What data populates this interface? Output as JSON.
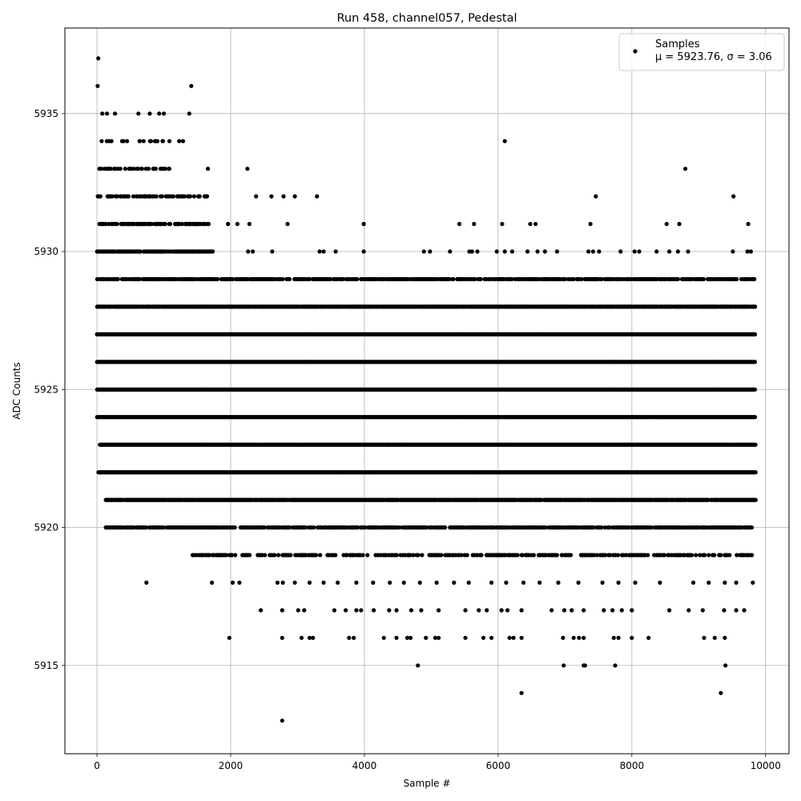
{
  "chart_data": {
    "type": "scatter",
    "title": "Run 458, channel057, Pedestal",
    "xlabel": "Sample #",
    "ylabel": "ADC Counts",
    "xlim": [
      -480,
      10350
    ],
    "ylim": [
      5911.8,
      5938.1
    ],
    "xticks": [
      0,
      2000,
      4000,
      6000,
      8000,
      10000
    ],
    "yticks": [
      5915,
      5920,
      5925,
      5930,
      5935
    ],
    "grid": true,
    "legend_position": "top-right",
    "marker_color": "#000000",
    "series": [
      {
        "name": "Samples",
        "stats_label": "μ = 5923.76, σ = 3.06",
        "n_samples": 9850,
        "mean": 5923.76,
        "std": 3.06,
        "dense_levels": [
          {
            "y": 5919,
            "x_start": 1430,
            "x_end": 9850,
            "density": 0.45
          },
          {
            "y": 5920,
            "x_start": 130,
            "x_end": 9800,
            "density": 0.7
          },
          {
            "y": 5921,
            "x_start": 130,
            "x_end": 9850,
            "density": 0.95
          },
          {
            "y": 5922,
            "x_start": 20,
            "x_end": 9850,
            "density": 1.0
          },
          {
            "y": 5923,
            "x_start": 40,
            "x_end": 9850,
            "density": 1.0
          },
          {
            "y": 5924,
            "x_start": 0,
            "x_end": 9850,
            "density": 1.0
          },
          {
            "y": 5925,
            "x_start": 0,
            "x_end": 9850,
            "density": 1.0
          },
          {
            "y": 5926,
            "x_start": 0,
            "x_end": 9850,
            "density": 1.0
          },
          {
            "y": 5927,
            "x_start": 0,
            "x_end": 9850,
            "density": 1.0
          },
          {
            "y": 5928,
            "x_start": 0,
            "x_end": 9850,
            "density": 0.95
          },
          {
            "y": 5929,
            "x_start": 0,
            "x_end": 9850,
            "density": 0.6
          },
          {
            "y": 5930,
            "x_start": 0,
            "x_end": 1750,
            "density": 0.8
          },
          {
            "y": 5931,
            "x_start": 0,
            "x_end": 1700,
            "density": 0.55
          },
          {
            "y": 5932,
            "x_start": 0,
            "x_end": 1650,
            "density": 0.4
          },
          {
            "y": 5933,
            "x_start": 0,
            "x_end": 1100,
            "density": 0.25
          },
          {
            "y": 5934,
            "x_start": 0,
            "x_end": 1300,
            "density": 0.15
          }
        ],
        "points": [
          {
            "x": 20,
            "y": 5937
          },
          {
            "x": 10,
            "y": 5936
          },
          {
            "x": 1410,
            "y": 5936
          },
          {
            "x": 80,
            "y": 5935
          },
          {
            "x": 150,
            "y": 5935
          },
          {
            "x": 270,
            "y": 5935
          },
          {
            "x": 620,
            "y": 5935
          },
          {
            "x": 790,
            "y": 5935
          },
          {
            "x": 930,
            "y": 5935
          },
          {
            "x": 1000,
            "y": 5935
          },
          {
            "x": 1380,
            "y": 5935
          },
          {
            "x": 70,
            "y": 5934
          },
          {
            "x": 450,
            "y": 5934
          },
          {
            "x": 640,
            "y": 5934
          },
          {
            "x": 980,
            "y": 5934
          },
          {
            "x": 1230,
            "y": 5934
          },
          {
            "x": 6100,
            "y": 5934
          },
          {
            "x": 480,
            "y": 5933
          },
          {
            "x": 1660,
            "y": 5933
          },
          {
            "x": 2250,
            "y": 5933
          },
          {
            "x": 8800,
            "y": 5933
          },
          {
            "x": 2380,
            "y": 5932
          },
          {
            "x": 2610,
            "y": 5932
          },
          {
            "x": 2790,
            "y": 5932
          },
          {
            "x": 2960,
            "y": 5932
          },
          {
            "x": 3290,
            "y": 5932
          },
          {
            "x": 7460,
            "y": 5932
          },
          {
            "x": 9520,
            "y": 5932
          },
          {
            "x": 1960,
            "y": 5931
          },
          {
            "x": 2100,
            "y": 5931
          },
          {
            "x": 2280,
            "y": 5931
          },
          {
            "x": 2850,
            "y": 5931
          },
          {
            "x": 3990,
            "y": 5931
          },
          {
            "x": 5420,
            "y": 5931
          },
          {
            "x": 5640,
            "y": 5931
          },
          {
            "x": 6060,
            "y": 5931
          },
          {
            "x": 6480,
            "y": 5931
          },
          {
            "x": 6560,
            "y": 5931
          },
          {
            "x": 7380,
            "y": 5931
          },
          {
            "x": 8520,
            "y": 5931
          },
          {
            "x": 8710,
            "y": 5931
          },
          {
            "x": 9740,
            "y": 5931
          },
          {
            "x": 2260,
            "y": 5930
          },
          {
            "x": 2330,
            "y": 5930
          },
          {
            "x": 2620,
            "y": 5930
          },
          {
            "x": 3330,
            "y": 5930
          },
          {
            "x": 3390,
            "y": 5930
          },
          {
            "x": 3570,
            "y": 5930
          },
          {
            "x": 3990,
            "y": 5930
          },
          {
            "x": 4890,
            "y": 5930
          },
          {
            "x": 4980,
            "y": 5930
          },
          {
            "x": 5280,
            "y": 5930
          },
          {
            "x": 5570,
            "y": 5930
          },
          {
            "x": 5610,
            "y": 5930
          },
          {
            "x": 5690,
            "y": 5930
          },
          {
            "x": 5980,
            "y": 5930
          },
          {
            "x": 6100,
            "y": 5930
          },
          {
            "x": 6210,
            "y": 5930
          },
          {
            "x": 6440,
            "y": 5930
          },
          {
            "x": 6590,
            "y": 5930
          },
          {
            "x": 6700,
            "y": 5930
          },
          {
            "x": 6880,
            "y": 5930
          },
          {
            "x": 7350,
            "y": 5930
          },
          {
            "x": 7420,
            "y": 5930
          },
          {
            "x": 7510,
            "y": 5930
          },
          {
            "x": 7830,
            "y": 5930
          },
          {
            "x": 8040,
            "y": 5930
          },
          {
            "x": 8110,
            "y": 5930
          },
          {
            "x": 8370,
            "y": 5930
          },
          {
            "x": 8560,
            "y": 5930
          },
          {
            "x": 8690,
            "y": 5930
          },
          {
            "x": 8840,
            "y": 5930
          },
          {
            "x": 9510,
            "y": 5930
          },
          {
            "x": 9730,
            "y": 5930
          },
          {
            "x": 9780,
            "y": 5930
          },
          {
            "x": 740,
            "y": 5918
          },
          {
            "x": 1720,
            "y": 5918
          },
          {
            "x": 2030,
            "y": 5918
          },
          {
            "x": 2130,
            "y": 5918
          },
          {
            "x": 2700,
            "y": 5918
          },
          {
            "x": 2780,
            "y": 5918
          },
          {
            "x": 2960,
            "y": 5918
          },
          {
            "x": 3180,
            "y": 5918
          },
          {
            "x": 3390,
            "y": 5918
          },
          {
            "x": 3600,
            "y": 5918
          },
          {
            "x": 3880,
            "y": 5918
          },
          {
            "x": 4130,
            "y": 5918
          },
          {
            "x": 4380,
            "y": 5918
          },
          {
            "x": 4590,
            "y": 5918
          },
          {
            "x": 4830,
            "y": 5918
          },
          {
            "x": 5080,
            "y": 5918
          },
          {
            "x": 5340,
            "y": 5918
          },
          {
            "x": 5560,
            "y": 5918
          },
          {
            "x": 5900,
            "y": 5918
          },
          {
            "x": 6120,
            "y": 5918
          },
          {
            "x": 6380,
            "y": 5918
          },
          {
            "x": 6620,
            "y": 5918
          },
          {
            "x": 6900,
            "y": 5918
          },
          {
            "x": 7200,
            "y": 5918
          },
          {
            "x": 7560,
            "y": 5918
          },
          {
            "x": 7800,
            "y": 5918
          },
          {
            "x": 8050,
            "y": 5918
          },
          {
            "x": 8420,
            "y": 5918
          },
          {
            "x": 8920,
            "y": 5918
          },
          {
            "x": 9150,
            "y": 5918
          },
          {
            "x": 9390,
            "y": 5918
          },
          {
            "x": 9560,
            "y": 5918
          },
          {
            "x": 9810,
            "y": 5918
          },
          {
            "x": 2450,
            "y": 5917
          },
          {
            "x": 2770,
            "y": 5917
          },
          {
            "x": 3010,
            "y": 5917
          },
          {
            "x": 3100,
            "y": 5917
          },
          {
            "x": 3550,
            "y": 5917
          },
          {
            "x": 3720,
            "y": 5917
          },
          {
            "x": 3880,
            "y": 5917
          },
          {
            "x": 3950,
            "y": 5917
          },
          {
            "x": 4140,
            "y": 5917
          },
          {
            "x": 4370,
            "y": 5917
          },
          {
            "x": 4480,
            "y": 5917
          },
          {
            "x": 4700,
            "y": 5917
          },
          {
            "x": 4850,
            "y": 5917
          },
          {
            "x": 5110,
            "y": 5917
          },
          {
            "x": 5510,
            "y": 5917
          },
          {
            "x": 5710,
            "y": 5917
          },
          {
            "x": 5830,
            "y": 5917
          },
          {
            "x": 6050,
            "y": 5917
          },
          {
            "x": 6140,
            "y": 5917
          },
          {
            "x": 6350,
            "y": 5917
          },
          {
            "x": 6800,
            "y": 5917
          },
          {
            "x": 6990,
            "y": 5917
          },
          {
            "x": 7100,
            "y": 5917
          },
          {
            "x": 7280,
            "y": 5917
          },
          {
            "x": 7580,
            "y": 5917
          },
          {
            "x": 7710,
            "y": 5917
          },
          {
            "x": 7850,
            "y": 5917
          },
          {
            "x": 8000,
            "y": 5917
          },
          {
            "x": 8560,
            "y": 5917
          },
          {
            "x": 8850,
            "y": 5917
          },
          {
            "x": 9060,
            "y": 5917
          },
          {
            "x": 9380,
            "y": 5917
          },
          {
            "x": 9560,
            "y": 5917
          },
          {
            "x": 9680,
            "y": 5917
          },
          {
            "x": 1980,
            "y": 5916
          },
          {
            "x": 2770,
            "y": 5916
          },
          {
            "x": 3060,
            "y": 5916
          },
          {
            "x": 3180,
            "y": 5916
          },
          {
            "x": 3230,
            "y": 5916
          },
          {
            "x": 3770,
            "y": 5916
          },
          {
            "x": 3840,
            "y": 5916
          },
          {
            "x": 4290,
            "y": 5916
          },
          {
            "x": 4480,
            "y": 5916
          },
          {
            "x": 4640,
            "y": 5916
          },
          {
            "x": 4690,
            "y": 5916
          },
          {
            "x": 4920,
            "y": 5916
          },
          {
            "x": 5060,
            "y": 5916
          },
          {
            "x": 5110,
            "y": 5916
          },
          {
            "x": 5510,
            "y": 5916
          },
          {
            "x": 5780,
            "y": 5916
          },
          {
            "x": 5900,
            "y": 5916
          },
          {
            "x": 6170,
            "y": 5916
          },
          {
            "x": 6230,
            "y": 5916
          },
          {
            "x": 6350,
            "y": 5916
          },
          {
            "x": 6970,
            "y": 5916
          },
          {
            "x": 7130,
            "y": 5916
          },
          {
            "x": 7210,
            "y": 5916
          },
          {
            "x": 7280,
            "y": 5916
          },
          {
            "x": 7730,
            "y": 5916
          },
          {
            "x": 7800,
            "y": 5916
          },
          {
            "x": 8000,
            "y": 5916
          },
          {
            "x": 8250,
            "y": 5916
          },
          {
            "x": 9080,
            "y": 5916
          },
          {
            "x": 9240,
            "y": 5916
          },
          {
            "x": 9390,
            "y": 5916
          },
          {
            "x": 4800,
            "y": 5915
          },
          {
            "x": 6980,
            "y": 5915
          },
          {
            "x": 7280,
            "y": 5915
          },
          {
            "x": 7300,
            "y": 5915
          },
          {
            "x": 7750,
            "y": 5915
          },
          {
            "x": 9400,
            "y": 5915
          },
          {
            "x": 6350,
            "y": 5914
          },
          {
            "x": 9330,
            "y": 5914
          },
          {
            "x": 2770,
            "y": 5913
          }
        ]
      }
    ]
  }
}
